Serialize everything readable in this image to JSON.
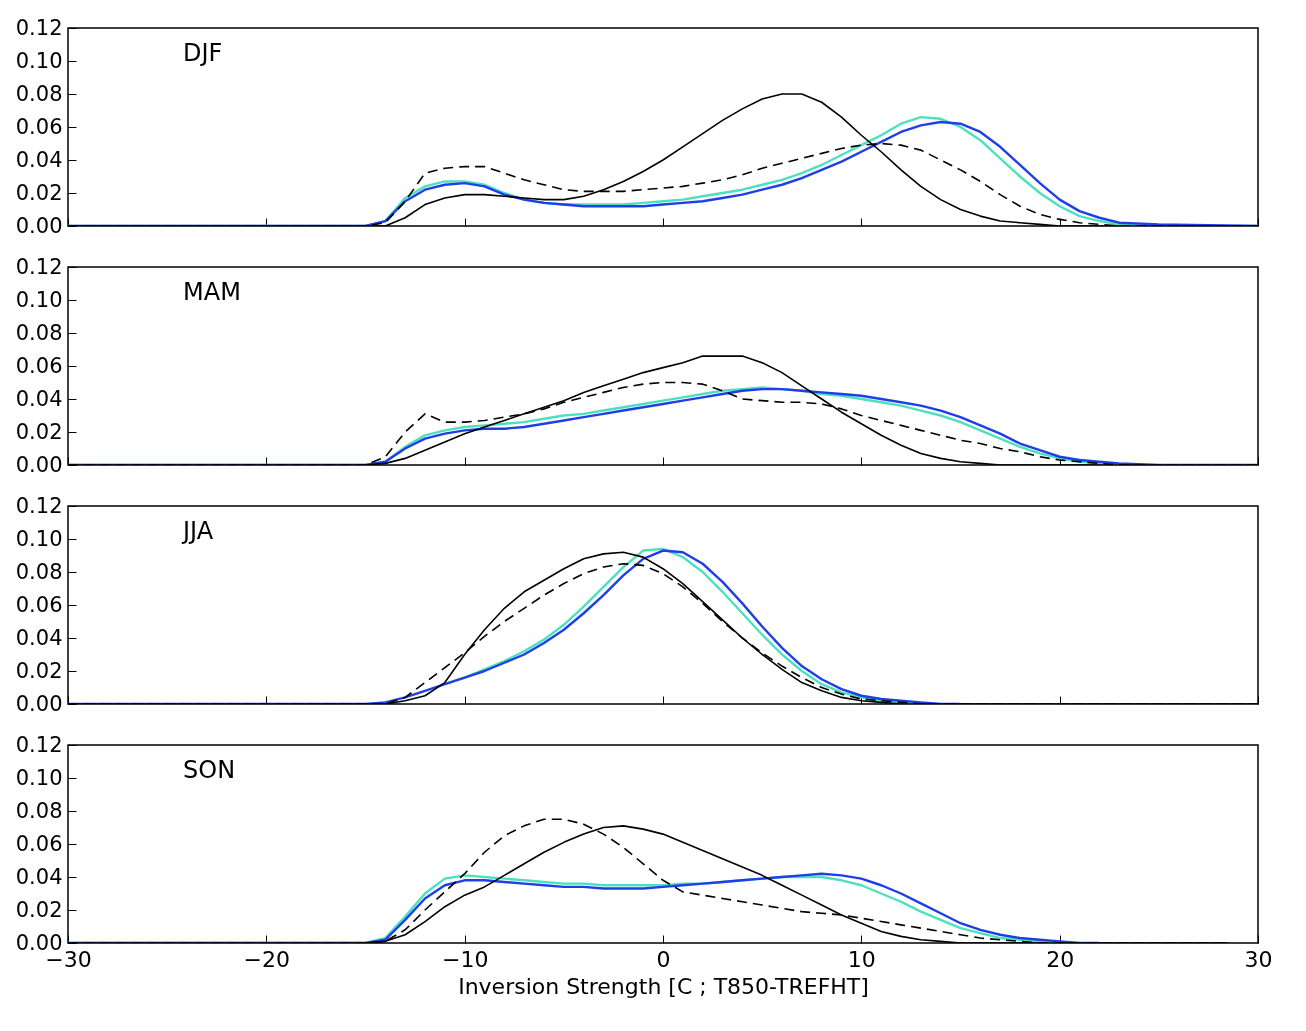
{
  "chart_data": [
    {
      "type": "line",
      "annotations": [
        "DJF"
      ],
      "tick_labels": "y",
      "x": [
        -30,
        -15,
        -14,
        -13,
        -12,
        -11,
        -10,
        -9,
        -8,
        -7,
        -6,
        -5,
        -4,
        -3,
        -2,
        -1,
        0,
        1,
        2,
        3,
        4,
        5,
        6,
        7,
        8,
        9,
        10,
        11,
        12,
        13,
        14,
        15,
        16,
        17,
        18,
        19,
        20,
        21,
        22,
        23,
        25,
        30
      ],
      "xlim": [
        -30,
        30
      ],
      "xticks": [
        {
          "value": -30,
          "label": null
        },
        {
          "value": -20,
          "label": null
        },
        {
          "value": -10,
          "label": null
        },
        {
          "value": 0,
          "label": null
        },
        {
          "value": 10,
          "label": null
        },
        {
          "value": 20,
          "label": null
        },
        {
          "value": 30,
          "label": null
        }
      ],
      "ylim": [
        0,
        0.12
      ],
      "yticks": [
        {
          "value": 0,
          "label": "0.00"
        },
        {
          "value": 0.02,
          "label": "0.02"
        },
        {
          "value": 0.04,
          "label": "0.04"
        },
        {
          "value": 0.06,
          "label": "0.06"
        },
        {
          "value": 0.08,
          "label": "0.08"
        },
        {
          "value": 0.1,
          "label": "0.10"
        },
        {
          "value": 0.12,
          "label": "0.12"
        }
      ],
      "series": [
        {
          "color": "#4de0c0",
          "values": [
            0,
            0,
            0.003,
            0.017,
            0.024,
            0.027,
            0.027,
            0.025,
            0.02,
            0.016,
            0.014,
            0.013,
            0.013,
            0.013,
            0.013,
            0.014,
            0.015,
            0.016,
            0.018,
            0.02,
            0.022,
            0.025,
            0.028,
            0.032,
            0.037,
            0.043,
            0.049,
            0.055,
            0.062,
            0.066,
            0.065,
            0.06,
            0.052,
            0.041,
            0.03,
            0.02,
            0.012,
            0.006,
            0.003,
            0.001,
            0,
            0
          ]
        },
        {
          "color": "#1f3fe6",
          "values": [
            0,
            0,
            0.003,
            0.015,
            0.022,
            0.025,
            0.026,
            0.024,
            0.019,
            0.016,
            0.014,
            0.013,
            0.012,
            0.012,
            0.012,
            0.012,
            0.013,
            0.014,
            0.015,
            0.017,
            0.019,
            0.022,
            0.025,
            0.029,
            0.034,
            0.039,
            0.045,
            0.051,
            0.057,
            0.061,
            0.063,
            0.062,
            0.057,
            0.048,
            0.037,
            0.026,
            0.016,
            0.009,
            0.005,
            0.002,
            0.001,
            0
          ]
        },
        {
          "color": "#000000",
          "line_style": "solid",
          "values": [
            0,
            0,
            0,
            0.005,
            0.013,
            0.017,
            0.019,
            0.019,
            0.018,
            0.017,
            0.016,
            0.016,
            0.018,
            0.022,
            0.027,
            0.033,
            0.04,
            0.048,
            0.056,
            0.064,
            0.071,
            0.077,
            0.08,
            0.08,
            0.075,
            0.066,
            0.055,
            0.045,
            0.034,
            0.024,
            0.016,
            0.01,
            0.006,
            0.003,
            0.002,
            0.001,
            0,
            0,
            0,
            0,
            0,
            0
          ]
        },
        {
          "color": "#000000",
          "line_style": "dashed",
          "values": [
            0,
            0,
            0.002,
            0.015,
            0.032,
            0.035,
            0.036,
            0.036,
            0.032,
            0.028,
            0.025,
            0.022,
            0.021,
            0.021,
            0.021,
            0.022,
            0.023,
            0.024,
            0.026,
            0.028,
            0.031,
            0.035,
            0.038,
            0.041,
            0.044,
            0.047,
            0.049,
            0.05,
            0.049,
            0.046,
            0.04,
            0.034,
            0.027,
            0.019,
            0.012,
            0.007,
            0.004,
            0.002,
            0.001,
            0,
            0,
            0
          ]
        }
      ]
    },
    {
      "type": "line",
      "annotations": [
        "MAM"
      ],
      "tick_labels": "y",
      "x": [
        -30,
        -15,
        -14,
        -13,
        -12,
        -11,
        -10,
        -9,
        -8,
        -7,
        -6,
        -5,
        -4,
        -3,
        -2,
        -1,
        0,
        1,
        2,
        3,
        4,
        5,
        6,
        7,
        8,
        9,
        10,
        11,
        12,
        13,
        14,
        15,
        16,
        17,
        18,
        19,
        20,
        21,
        22,
        23,
        25,
        30
      ],
      "xlim": [
        -30,
        30
      ],
      "xticks": [
        {
          "value": -30,
          "label": null
        },
        {
          "value": -20,
          "label": null
        },
        {
          "value": -10,
          "label": null
        },
        {
          "value": 0,
          "label": null
        },
        {
          "value": 10,
          "label": null
        },
        {
          "value": 20,
          "label": null
        },
        {
          "value": 30,
          "label": null
        }
      ],
      "ylim": [
        0,
        0.12
      ],
      "yticks": [
        {
          "value": 0,
          "label": "0.00"
        },
        {
          "value": 0.02,
          "label": "0.02"
        },
        {
          "value": 0.04,
          "label": "0.04"
        },
        {
          "value": 0.06,
          "label": "0.06"
        },
        {
          "value": 0.08,
          "label": "0.08"
        },
        {
          "value": 0.1,
          "label": "0.10"
        },
        {
          "value": 0.12,
          "label": "0.12"
        }
      ],
      "series": [
        {
          "color": "#4de0c0",
          "values": [
            0,
            0,
            0.002,
            0.011,
            0.018,
            0.021,
            0.023,
            0.024,
            0.025,
            0.026,
            0.028,
            0.03,
            0.031,
            0.033,
            0.035,
            0.037,
            0.039,
            0.041,
            0.043,
            0.045,
            0.046,
            0.047,
            0.046,
            0.045,
            0.043,
            0.042,
            0.04,
            0.038,
            0.036,
            0.033,
            0.03,
            0.026,
            0.021,
            0.016,
            0.011,
            0.007,
            0.004,
            0.002,
            0.001,
            0,
            null,
            null
          ]
        },
        {
          "color": "#1f3fe6",
          "values": [
            0,
            0,
            0.002,
            0.01,
            0.016,
            0.019,
            0.021,
            0.022,
            0.022,
            0.023,
            0.025,
            0.027,
            0.029,
            0.031,
            0.033,
            0.035,
            0.037,
            0.039,
            0.041,
            0.043,
            0.045,
            0.046,
            0.046,
            0.045,
            0.044,
            0.043,
            0.042,
            0.04,
            0.038,
            0.036,
            0.033,
            0.029,
            0.024,
            0.019,
            0.013,
            0.009,
            0.005,
            0.003,
            0.002,
            0.001,
            0,
            0
          ]
        },
        {
          "color": "#000000",
          "line_style": "solid",
          "values": [
            0,
            0,
            0.001,
            0.004,
            0.009,
            0.014,
            0.019,
            0.023,
            0.027,
            0.031,
            0.035,
            0.039,
            0.044,
            0.048,
            0.052,
            0.056,
            0.059,
            0.062,
            0.066,
            0.066,
            0.066,
            0.062,
            0.056,
            0.048,
            0.04,
            0.032,
            0.025,
            0.018,
            0.012,
            0.007,
            0.004,
            0.002,
            0.001,
            0,
            0,
            0,
            0,
            0,
            0,
            0,
            0,
            0
          ]
        },
        {
          "color": "#000000",
          "line_style": "dashed",
          "values": [
            0,
            0,
            0.005,
            0.02,
            0.031,
            0.026,
            0.026,
            0.027,
            0.029,
            0.031,
            0.034,
            0.038,
            0.041,
            0.044,
            0.047,
            0.049,
            0.05,
            0.05,
            0.049,
            0.045,
            0.04,
            0.039,
            0.038,
            0.038,
            0.037,
            0.034,
            0.03,
            0.027,
            0.024,
            0.021,
            0.018,
            0.015,
            0.013,
            0.01,
            0.008,
            0.005,
            0.003,
            0.002,
            0.001,
            0,
            0,
            0
          ]
        }
      ]
    },
    {
      "type": "line",
      "annotations": [
        "JJA"
      ],
      "tick_labels": "y",
      "x": [
        -30,
        -15,
        -14,
        -13,
        -12,
        -11,
        -10,
        -9,
        -8,
        -7,
        -6,
        -5,
        -4,
        -3,
        -2,
        -1,
        0,
        1,
        2,
        3,
        4,
        5,
        6,
        7,
        8,
        9,
        10,
        11,
        12,
        13,
        14,
        15,
        16,
        17,
        18,
        19,
        20,
        21,
        22,
        23,
        25,
        30
      ],
      "xlim": [
        -30,
        30
      ],
      "xticks": [
        {
          "value": -30,
          "label": null
        },
        {
          "value": -20,
          "label": null
        },
        {
          "value": -10,
          "label": null
        },
        {
          "value": 0,
          "label": null
        },
        {
          "value": 10,
          "label": null
        },
        {
          "value": 20,
          "label": null
        },
        {
          "value": 30,
          "label": null
        }
      ],
      "ylim": [
        0,
        0.12
      ],
      "yticks": [
        {
          "value": 0,
          "label": "0.00"
        },
        {
          "value": 0.02,
          "label": "0.02"
        },
        {
          "value": 0.04,
          "label": "0.04"
        },
        {
          "value": 0.06,
          "label": "0.06"
        },
        {
          "value": 0.08,
          "label": "0.08"
        },
        {
          "value": 0.1,
          "label": "0.10"
        },
        {
          "value": 0.12,
          "label": "0.12"
        }
      ],
      "series": [
        {
          "color": "#4de0c0",
          "values": [
            null,
            null,
            null,
            null,
            null,
            0.012,
            0.016,
            0.021,
            0.026,
            0.032,
            0.039,
            0.048,
            0.059,
            0.071,
            0.083,
            0.093,
            0.094,
            0.089,
            0.08,
            0.068,
            0.055,
            0.042,
            0.03,
            0.02,
            0.012,
            0.007,
            0.004,
            0.002,
            0.001,
            0,
            null,
            null,
            null,
            null,
            null,
            null,
            null,
            null,
            null,
            null,
            null,
            null
          ]
        },
        {
          "color": "#1f3fe6",
          "values": [
            0,
            0,
            0.001,
            0.004,
            0.008,
            0.012,
            0.016,
            0.02,
            0.025,
            0.03,
            0.037,
            0.045,
            0.055,
            0.066,
            0.078,
            0.088,
            0.093,
            0.092,
            0.085,
            0.074,
            0.061,
            0.047,
            0.034,
            0.023,
            0.015,
            0.009,
            0.005,
            0.003,
            0.002,
            0.001,
            0,
            0,
            null,
            null,
            null,
            null,
            null,
            null,
            null,
            null,
            null,
            null
          ]
        },
        {
          "color": "#000000",
          "line_style": "solid",
          "values": [
            0,
            0,
            0,
            0.002,
            0.005,
            0.013,
            0.03,
            0.045,
            0.058,
            0.068,
            0.075,
            0.082,
            0.088,
            0.091,
            0.092,
            0.089,
            0.082,
            0.073,
            0.062,
            0.051,
            0.04,
            0.03,
            0.021,
            0.013,
            0.008,
            0.004,
            0.002,
            0.001,
            0,
            0,
            0,
            0,
            0,
            0,
            0,
            0,
            0,
            0,
            0,
            0,
            0,
            0
          ]
        },
        {
          "color": "#000000",
          "line_style": "dashed",
          "values": [
            0,
            0,
            0,
            0.004,
            0.013,
            0.022,
            0.031,
            0.041,
            0.05,
            0.058,
            0.066,
            0.073,
            0.079,
            0.083,
            0.085,
            0.084,
            0.079,
            0.071,
            0.061,
            0.05,
            0.04,
            0.031,
            0.023,
            0.016,
            0.01,
            0.006,
            0.003,
            0.002,
            0.001,
            0,
            0,
            0,
            0,
            0,
            0,
            0,
            0,
            0,
            0,
            0,
            0,
            0
          ]
        }
      ]
    },
    {
      "type": "line",
      "annotations": [
        "SON"
      ],
      "xlabel": "Inversion Strength [C ; T850-TREFHT]",
      "x": [
        -30,
        -15,
        -14,
        -13,
        -12,
        -11,
        -10,
        -9,
        -8,
        -7,
        -6,
        -5,
        -4,
        -3,
        -2,
        -1,
        0,
        1,
        2,
        3,
        4,
        5,
        6,
        7,
        8,
        9,
        10,
        11,
        12,
        13,
        14,
        15,
        16,
        17,
        18,
        19,
        20,
        21,
        22,
        23,
        25,
        28.5
      ],
      "xlim": [
        -30,
        30
      ],
      "xticks": [
        {
          "value": -30,
          "label": "−30"
        },
        {
          "value": -20,
          "label": "−20"
        },
        {
          "value": -10,
          "label": "−10"
        },
        0,
        10,
        20,
        30
      ],
      "ylim": [
        0,
        0.12
      ],
      "yticks": [
        {
          "value": 0,
          "label": "0.00"
        },
        {
          "value": 0.02,
          "label": "0.02"
        },
        {
          "value": 0.04,
          "label": "0.04"
        },
        {
          "value": 0.06,
          "label": "0.06"
        },
        {
          "value": 0.08,
          "label": "0.08"
        },
        {
          "value": 0.1,
          "label": "0.10"
        },
        {
          "value": 0.12,
          "label": "0.12"
        }
      ],
      "series": [
        {
          "color": "#4de0c0",
          "values": [
            0,
            0,
            0.003,
            0.016,
            0.03,
            0.039,
            0.041,
            0.04,
            0.039,
            0.038,
            0.037,
            0.036,
            0.036,
            0.035,
            0.035,
            0.035,
            0.035,
            0.036,
            0.036,
            0.037,
            0.038,
            0.039,
            0.04,
            0.04,
            0.04,
            0.038,
            0.035,
            0.03,
            0.025,
            0.019,
            0.014,
            0.009,
            0.006,
            0.003,
            0.002,
            0.001,
            0,
            null,
            null,
            null,
            null,
            null
          ]
        },
        {
          "color": "#1f3fe6",
          "values": [
            0,
            0,
            0.002,
            0.014,
            0.027,
            0.035,
            0.038,
            0.038,
            0.037,
            0.036,
            0.035,
            0.034,
            0.034,
            0.033,
            0.033,
            0.033,
            0.034,
            0.035,
            0.036,
            0.037,
            0.038,
            0.039,
            0.04,
            0.041,
            0.042,
            0.041,
            0.039,
            0.035,
            0.03,
            0.024,
            0.018,
            0.012,
            0.008,
            0.005,
            0.003,
            0.002,
            0.001,
            0,
            0,
            null,
            null,
            null
          ]
        },
        {
          "color": "#000000",
          "line_style": "solid",
          "values": [
            0,
            0,
            0.001,
            0.005,
            0.013,
            0.022,
            0.029,
            0.034,
            0.041,
            0.048,
            0.055,
            0.061,
            0.066,
            0.07,
            0.071,
            0.069,
            0.066,
            0.061,
            0.056,
            0.051,
            0.046,
            0.041,
            0.035,
            0.029,
            0.023,
            0.017,
            0.012,
            0.007,
            0.004,
            0.002,
            0.001,
            0,
            0,
            0,
            0,
            0,
            0,
            0,
            0,
            0,
            0,
            0
          ]
        },
        {
          "color": "#000000",
          "line_style": "dashed",
          "values": [
            0,
            0,
            0.001,
            0.008,
            0.02,
            0.031,
            0.042,
            0.055,
            0.065,
            0.071,
            0.075,
            0.075,
            0.072,
            0.066,
            0.058,
            0.048,
            0.038,
            0.031,
            0.029,
            0.027,
            0.025,
            0.023,
            0.021,
            0.019,
            0.018,
            0.017,
            0.015,
            0.013,
            0.011,
            0.009,
            0.007,
            0.005,
            0.003,
            0.002,
            0.001,
            0,
            0,
            0,
            0,
            0,
            0,
            0
          ]
        }
      ]
    }
  ]
}
